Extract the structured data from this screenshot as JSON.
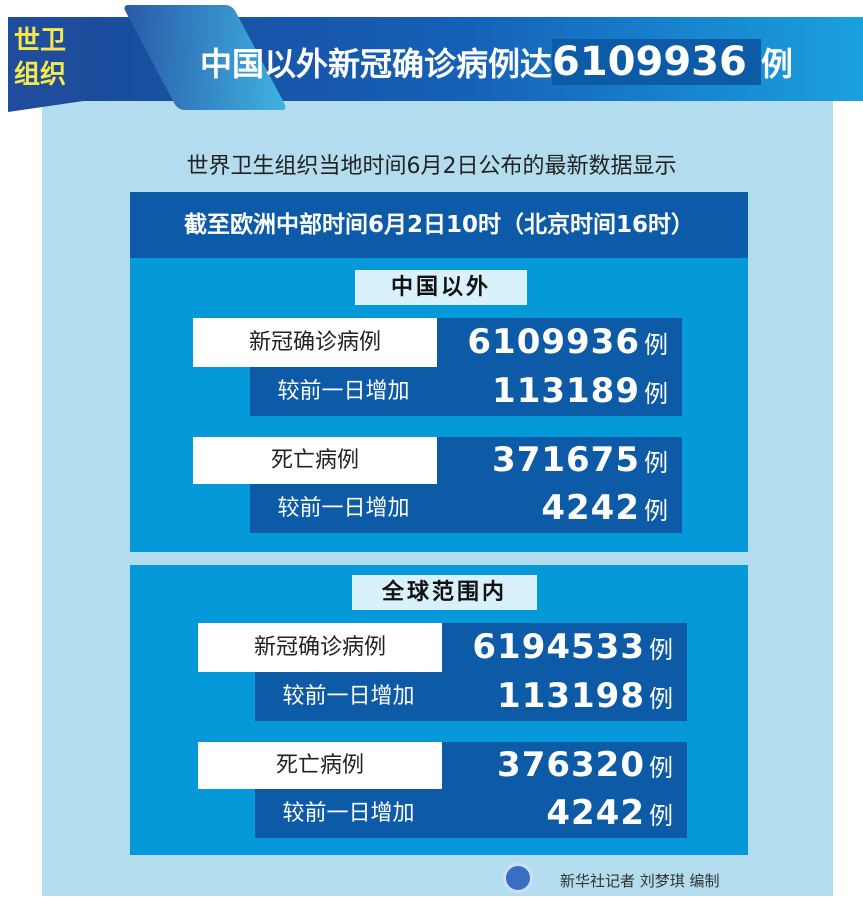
{
  "badge": "世卫组织",
  "title": {
    "prefix": "中国以外新冠确诊病例达",
    "number": "6109936",
    "suffix": "例"
  },
  "subtitle": "世界卫生组织当地时间6月2日公布的最新数据显示",
  "date_band": "截至欧洲中部时间6月2日10时（北京时间16时）",
  "unit": "例",
  "sections": [
    {
      "label": "中国以外",
      "confirmed_label": "新冠确诊病例",
      "confirmed": "6109936",
      "increase_label": "较前一日增加",
      "confirmed_increase": "113189",
      "deaths_label": "死亡病例",
      "deaths": "371675",
      "deaths_increase": "4242"
    },
    {
      "label": "全球范围内",
      "confirmed_label": "新冠确诊病例",
      "confirmed": "6194533",
      "increase_label": "较前一日增加",
      "confirmed_increase": "113198",
      "deaths_label": "死亡病例",
      "deaths": "376320",
      "deaths_increase": "4242"
    }
  ],
  "credit": "新华社记者 刘梦琪 编制"
}
